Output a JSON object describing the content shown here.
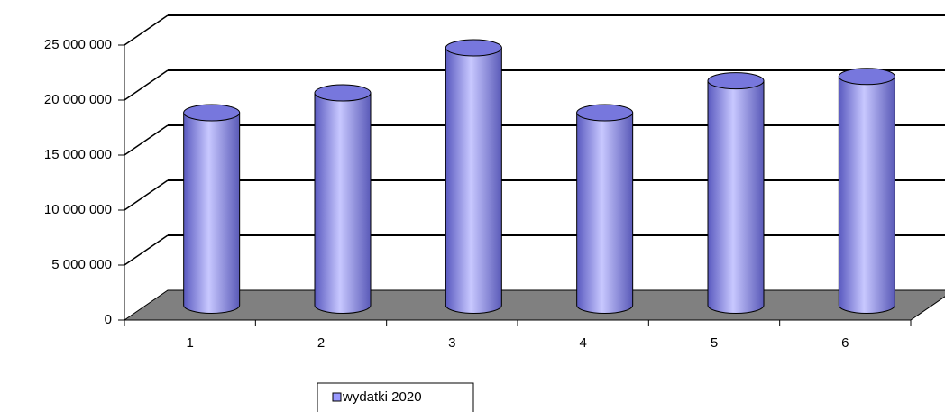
{
  "chart_data": {
    "type": "bar3d",
    "categories": [
      "1",
      "2",
      "3",
      "4",
      "5",
      "6"
    ],
    "series": [
      {
        "name": "wydatki 2020",
        "color": "#9999ff",
        "values": [
          17500000,
          19300000,
          23400000,
          17500000,
          20400000,
          20800000
        ]
      }
    ],
    "ylim": [
      0,
      25000000
    ],
    "yticks": [
      {
        "value": 0,
        "label": "0"
      },
      {
        "value": 5000000,
        "label": "5 000 000"
      },
      {
        "value": 10000000,
        "label": "10 000 000"
      },
      {
        "value": 15000000,
        "label": "15 000 000"
      },
      {
        "value": 20000000,
        "label": "20 000 000"
      },
      {
        "value": 25000000,
        "label": "25 000 000"
      }
    ],
    "grid": true,
    "legend": "bottom"
  }
}
